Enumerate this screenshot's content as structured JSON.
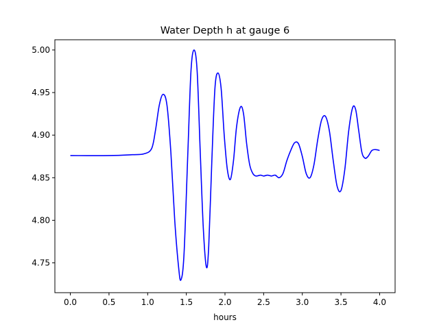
{
  "chart_data": {
    "type": "line",
    "title": "Water Depth h at gauge 6",
    "xlabel": "hours",
    "ylabel": "",
    "xlim": [
      -0.2,
      4.2
    ],
    "ylim": [
      4.715,
      5.012
    ],
    "xticks": [
      0.0,
      0.5,
      1.0,
      1.5,
      2.0,
      2.5,
      3.0,
      3.5,
      4.0
    ],
    "xtick_labels": [
      "0.0",
      "0.5",
      "1.0",
      "1.5",
      "2.0",
      "2.5",
      "3.0",
      "3.5",
      "4.0"
    ],
    "yticks": [
      4.75,
      4.8,
      4.85,
      4.9,
      4.95,
      5.0
    ],
    "ytick_labels": [
      "4.75",
      "4.80",
      "4.85",
      "4.90",
      "4.95",
      "5.00"
    ],
    "grid": false,
    "legend": "none",
    "series": [
      {
        "color": "#0000ff",
        "x": [
          0.0,
          0.5,
          0.8,
          0.95,
          1.05,
          1.1,
          1.15,
          1.2,
          1.25,
          1.3,
          1.35,
          1.4,
          1.43,
          1.47,
          1.52,
          1.56,
          1.6,
          1.64,
          1.68,
          1.72,
          1.76,
          1.79,
          1.83,
          1.87,
          1.91,
          1.95,
          1.99,
          2.03,
          2.07,
          2.11,
          2.15,
          2.2,
          2.24,
          2.28,
          2.32,
          2.36,
          2.4,
          2.46,
          2.5,
          2.55,
          2.6,
          2.65,
          2.7,
          2.75,
          2.8,
          2.85,
          2.9,
          2.95,
          3.0,
          3.05,
          3.1,
          3.15,
          3.2,
          3.25,
          3.3,
          3.35,
          3.4,
          3.45,
          3.5,
          3.55,
          3.6,
          3.65,
          3.69,
          3.73,
          3.77,
          3.81,
          3.85,
          3.9,
          3.95,
          4.0
        ],
        "y": [
          4.876,
          4.876,
          4.877,
          4.878,
          4.884,
          4.905,
          4.935,
          4.948,
          4.935,
          4.88,
          4.8,
          4.745,
          4.73,
          4.76,
          4.88,
          4.975,
          5.0,
          4.975,
          4.88,
          4.79,
          4.745,
          4.77,
          4.87,
          4.955,
          4.973,
          4.955,
          4.9,
          4.86,
          4.848,
          4.87,
          4.91,
          4.933,
          4.925,
          4.89,
          4.865,
          4.855,
          4.852,
          4.853,
          4.852,
          4.853,
          4.852,
          4.853,
          4.85,
          4.855,
          4.87,
          4.882,
          4.891,
          4.89,
          4.875,
          4.855,
          4.85,
          4.865,
          4.895,
          4.918,
          4.922,
          4.905,
          4.87,
          4.84,
          4.835,
          4.86,
          4.905,
          4.932,
          4.93,
          4.905,
          4.88,
          4.873,
          4.875,
          4.882,
          4.883,
          4.882
        ]
      }
    ]
  }
}
